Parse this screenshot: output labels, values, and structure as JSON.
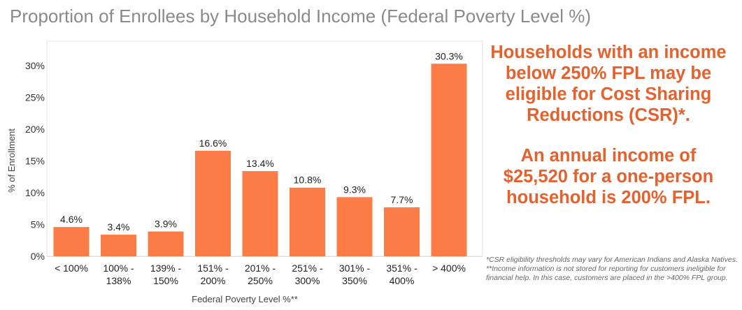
{
  "title": "Proportion of Enrollees by Household Income (Federal Poverty Level %)",
  "callout": [
    "Households with an income below 250% FPL may be eligible for Cost Sharing Reductions (CSR)*.",
    "An annual income of $25,520 for a one-person household is 200% FPL."
  ],
  "notes": [
    "*CSR eligibility thresholds may vary for American Indians and Alaska Natives.",
    "**Income information is not stored for reporting for customers ineligible for financial help. In this case, customers are placed in the >400% FPL group."
  ],
  "chart_data": {
    "type": "bar",
    "categories": [
      [
        "< 100%"
      ],
      [
        "100% -",
        "138%"
      ],
      [
        "139% -",
        "150%"
      ],
      [
        "151% -",
        "200%"
      ],
      [
        "201% -",
        "250%"
      ],
      [
        "251% -",
        "300%"
      ],
      [
        "301% -",
        "350%"
      ],
      [
        "351% -",
        "400%"
      ],
      [
        "> 400%"
      ]
    ],
    "values": [
      4.6,
      3.4,
      3.9,
      16.6,
      13.4,
      10.8,
      9.3,
      7.7,
      30.3
    ],
    "data_labels": [
      "4.6%",
      "3.4%",
      "3.9%",
      "16.6%",
      "13.4%",
      "10.8%",
      "9.3%",
      "7.7%",
      "30.3%"
    ],
    "xlabel": "Federal Poverty Level %**",
    "ylabel": "% of Enrollment",
    "yticks": [
      "0%",
      "5%",
      "10%",
      "15%",
      "20%",
      "25%",
      "30%"
    ],
    "ylim": [
      0,
      33
    ],
    "bar_color": "#fb7c47",
    "grid": false
  }
}
